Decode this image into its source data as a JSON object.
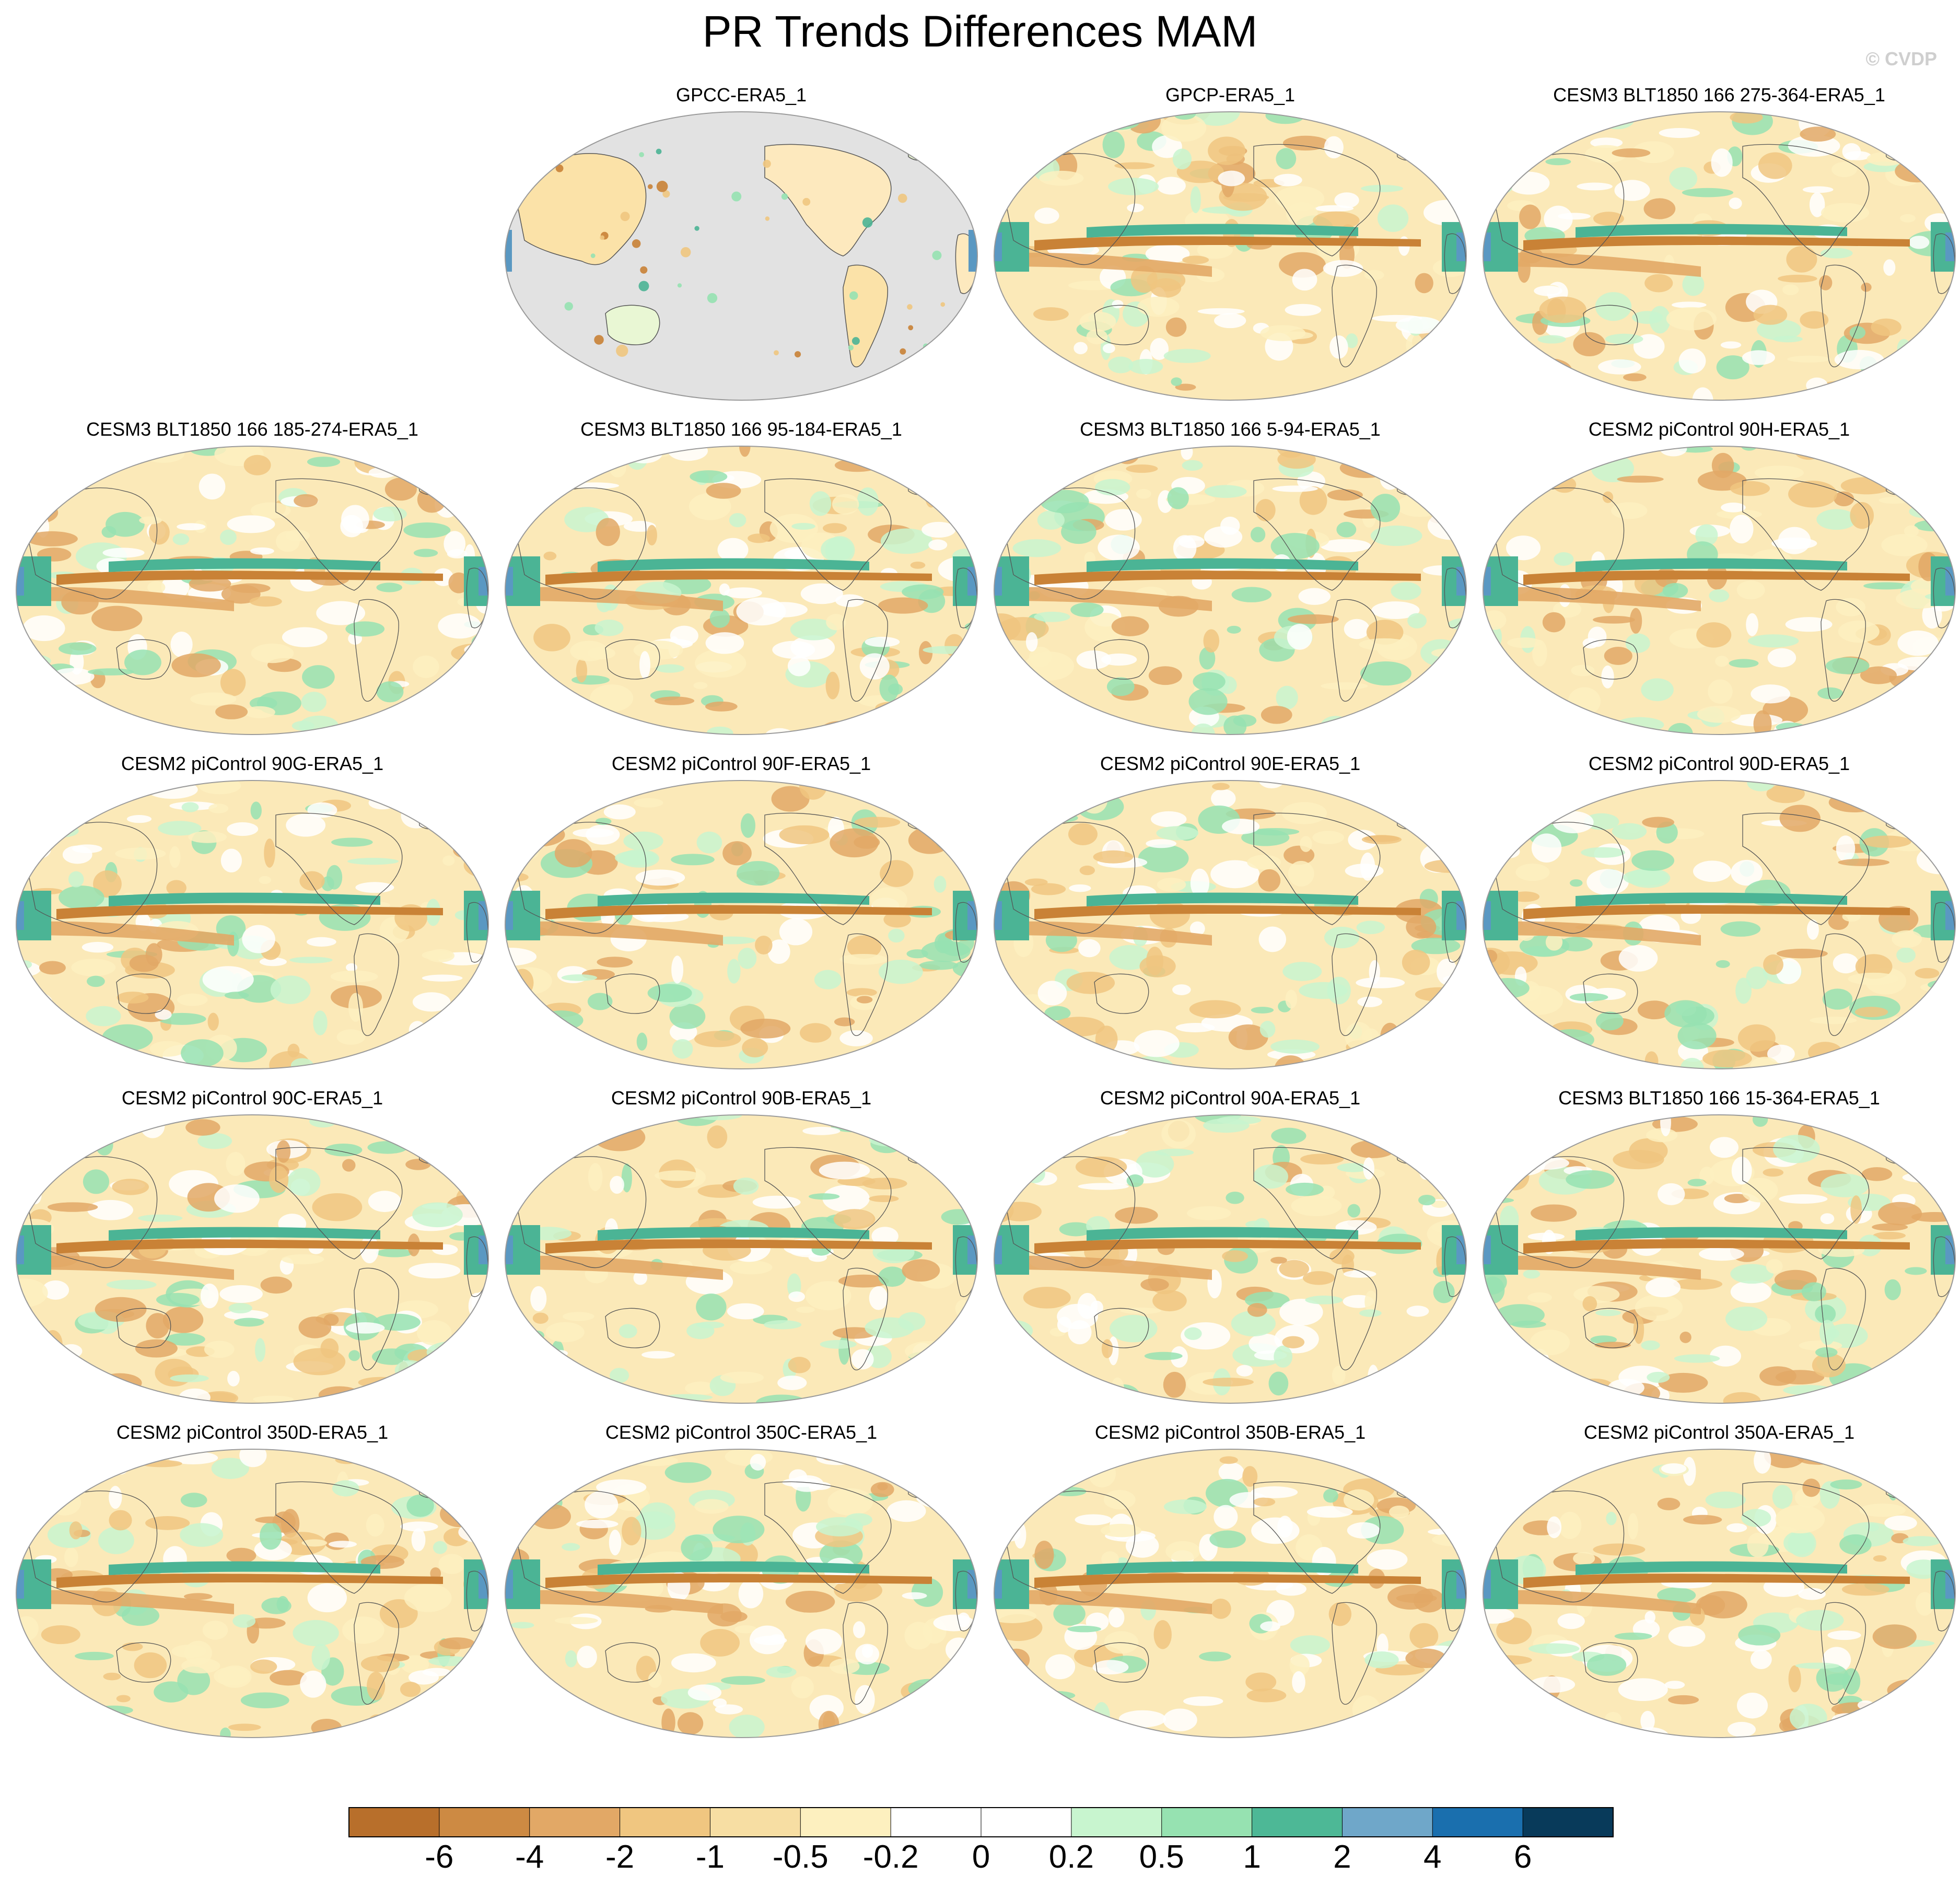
{
  "title": "PR Trends Differences MAM",
  "credit": "© CVDP",
  "panels": [
    {
      "title": "GPCC-ERA5_1",
      "style": "land_only"
    },
    {
      "title": "GPCP-ERA5_1",
      "style": "full"
    },
    {
      "title": "CESM3 BLT1850 166 275-364-ERA5_1",
      "style": "full"
    },
    {
      "title": "CESM3 BLT1850 166 185-274-ERA5_1",
      "style": "full"
    },
    {
      "title": "CESM3 BLT1850 166 95-184-ERA5_1",
      "style": "full"
    },
    {
      "title": "CESM3 BLT1850 166 5-94-ERA5_1",
      "style": "full"
    },
    {
      "title": "CESM2 piControl 90H-ERA5_1",
      "style": "full"
    },
    {
      "title": "CESM2 piControl 90G-ERA5_1",
      "style": "full"
    },
    {
      "title": "CESM2 piControl 90F-ERA5_1",
      "style": "full"
    },
    {
      "title": "CESM2 piControl 90E-ERA5_1",
      "style": "full"
    },
    {
      "title": "CESM2 piControl 90D-ERA5_1",
      "style": "full"
    },
    {
      "title": "CESM2 piControl 90C-ERA5_1",
      "style": "full"
    },
    {
      "title": "CESM2 piControl 90B-ERA5_1",
      "style": "full"
    },
    {
      "title": "CESM2 piControl 90A-ERA5_1",
      "style": "full"
    },
    {
      "title": "CESM3 BLT1850 166 15-364-ERA5_1",
      "style": "full"
    },
    {
      "title": "CESM2 piControl 350D-ERA5_1",
      "style": "full"
    },
    {
      "title": "CESM2 piControl 350C-ERA5_1",
      "style": "full"
    },
    {
      "title": "CESM2 piControl 350B-ERA5_1",
      "style": "full"
    },
    {
      "title": "CESM2 piControl 350A-ERA5_1",
      "style": "full"
    }
  ],
  "colorbar": {
    "labels": [
      "-6",
      "-4",
      "-2",
      "-1",
      "-0.5",
      "-0.2",
      "0",
      "0.2",
      "0.5",
      "1",
      "2",
      "4",
      "6"
    ],
    "colors": [
      "#b86f2b",
      "#cd8a43",
      "#e2a866",
      "#f0c680",
      "#f7dea3",
      "#fdf0bf",
      "#ffffff",
      "#ffffff",
      "#c8f5cf",
      "#96e2b1",
      "#4db896",
      "#6fa7c9",
      "#1a6fae",
      "#083a5a"
    ]
  },
  "colors": {
    "ocean_neutral": "#fbe9b8",
    "land_mask": "#e2e2e2",
    "dry_strong": "#c98236",
    "wet_strong": "#4bb495",
    "wet_very": "#5a98c2",
    "coast": "#555555"
  }
}
